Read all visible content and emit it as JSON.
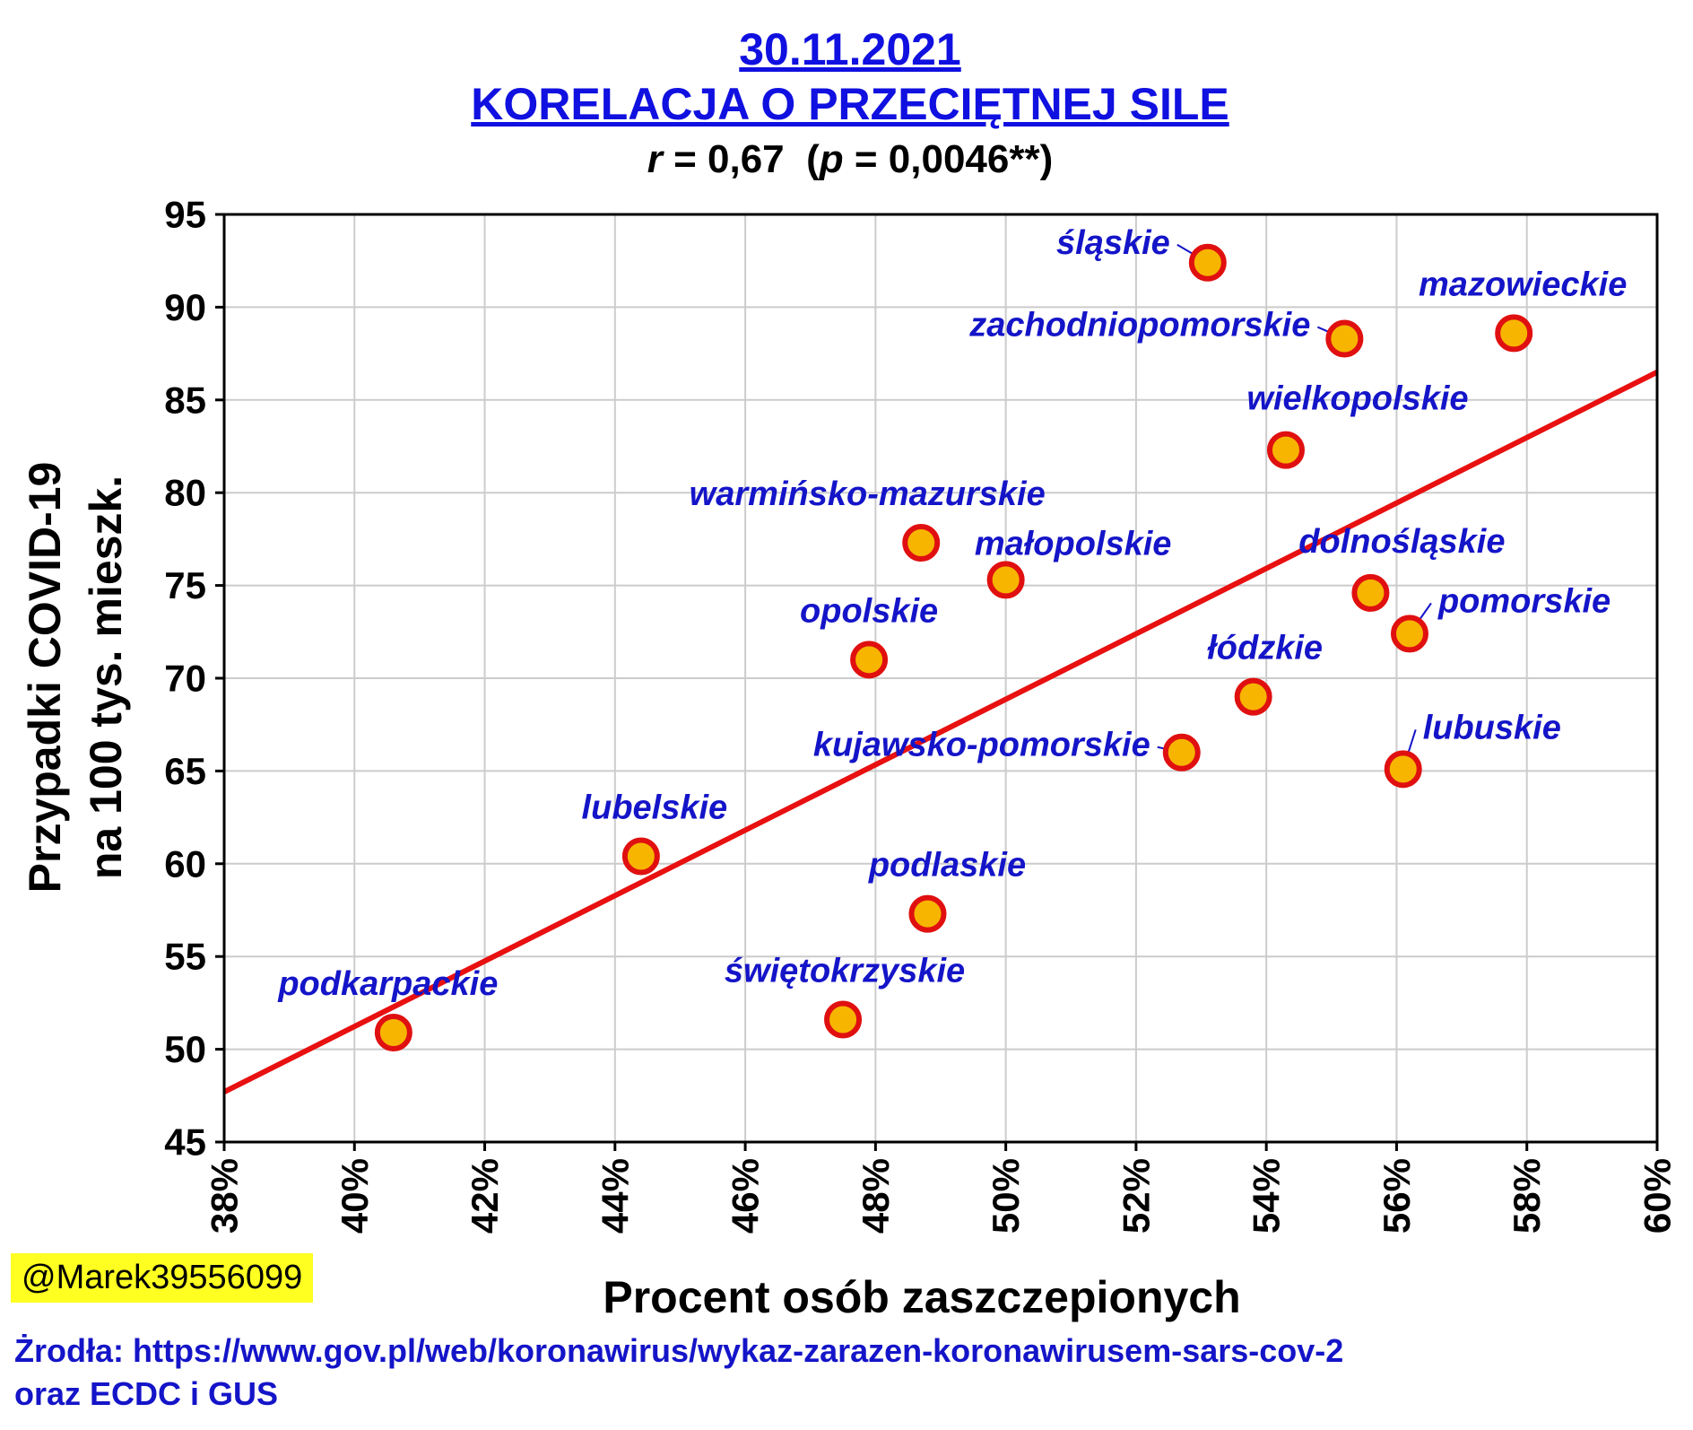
{
  "chart_data": {
    "type": "scatter",
    "title_date": "30.11.2021",
    "title_main": "KORELACJA O PRZECIĘTNEJ SILE",
    "stats": {
      "r_symbol": "r",
      "r_text": " = 0,67  (",
      "p_symbol": "p",
      "p_text": " = 0,0046**)"
    },
    "xlabel": "Procent osób zaszczepionych",
    "ylabel_line1": "Przypadki COVID-19",
    "ylabel_line2": "na 100 tys. mieszk.",
    "xlim": [
      38,
      60
    ],
    "ylim": [
      45,
      95
    ],
    "x_ticks": [
      38,
      40,
      42,
      44,
      46,
      48,
      50,
      52,
      54,
      56,
      58,
      60
    ],
    "x_tick_labels": [
      "38%",
      "40%",
      "42%",
      "44%",
      "46%",
      "48%",
      "50%",
      "52%",
      "54%",
      "56%",
      "58%",
      "60%"
    ],
    "y_ticks": [
      45,
      50,
      55,
      60,
      65,
      70,
      75,
      80,
      85,
      90,
      95
    ],
    "y_tick_labels": [
      "45",
      "50",
      "55",
      "60",
      "65",
      "70",
      "75",
      "80",
      "85",
      "90",
      "95"
    ],
    "grid": true,
    "points": [
      {
        "label": "śląskie",
        "x": 53.1,
        "y": 92.4
      },
      {
        "label": "mazowieckie",
        "x": 57.8,
        "y": 88.6
      },
      {
        "label": "zachodniopomorskie",
        "x": 55.2,
        "y": 88.3
      },
      {
        "label": "wielkopolskie",
        "x": 54.3,
        "y": 82.3
      },
      {
        "label": "warmińsko-mazurskie",
        "x": 48.7,
        "y": 77.3
      },
      {
        "label": "małopolskie",
        "x": 50.0,
        "y": 75.3
      },
      {
        "label": "dolnośląskie",
        "x": 55.6,
        "y": 74.6
      },
      {
        "label": "pomorskie",
        "x": 56.2,
        "y": 72.4
      },
      {
        "label": "opolskie",
        "x": 47.9,
        "y": 71.0
      },
      {
        "label": "łódzkie",
        "x": 53.8,
        "y": 69.0
      },
      {
        "label": "kujawsko-pomorskie",
        "x": 52.7,
        "y": 66.0
      },
      {
        "label": "lubuskie",
        "x": 56.1,
        "y": 65.1
      },
      {
        "label": "lubelskie",
        "x": 44.4,
        "y": 60.4
      },
      {
        "label": "podlaskie",
        "x": 48.8,
        "y": 57.3
      },
      {
        "label": "świętokrzyskie",
        "x": 47.5,
        "y": 51.6
      },
      {
        "label": "podkarpackie",
        "x": 40.6,
        "y": 50.9
      }
    ],
    "regression": {
      "x": [
        38,
        60
      ],
      "y": [
        47.7,
        86.5
      ]
    },
    "colors": {
      "marker_fill": "#f7b500",
      "marker_edge": "#e01010",
      "regression": "#e81010",
      "label": "#1414c8",
      "title": "#1010e0",
      "grid": "#cccccc",
      "handle_bg": "#ffff22"
    }
  },
  "footer": {
    "handle": "@Marek39556099",
    "sources_line1": "Żrodła: https://www.gov.pl/web/koronawirus/wykaz-zarazen-koronawirusem-sars-cov-2",
    "sources_line2": "oraz ECDC i GUS"
  }
}
